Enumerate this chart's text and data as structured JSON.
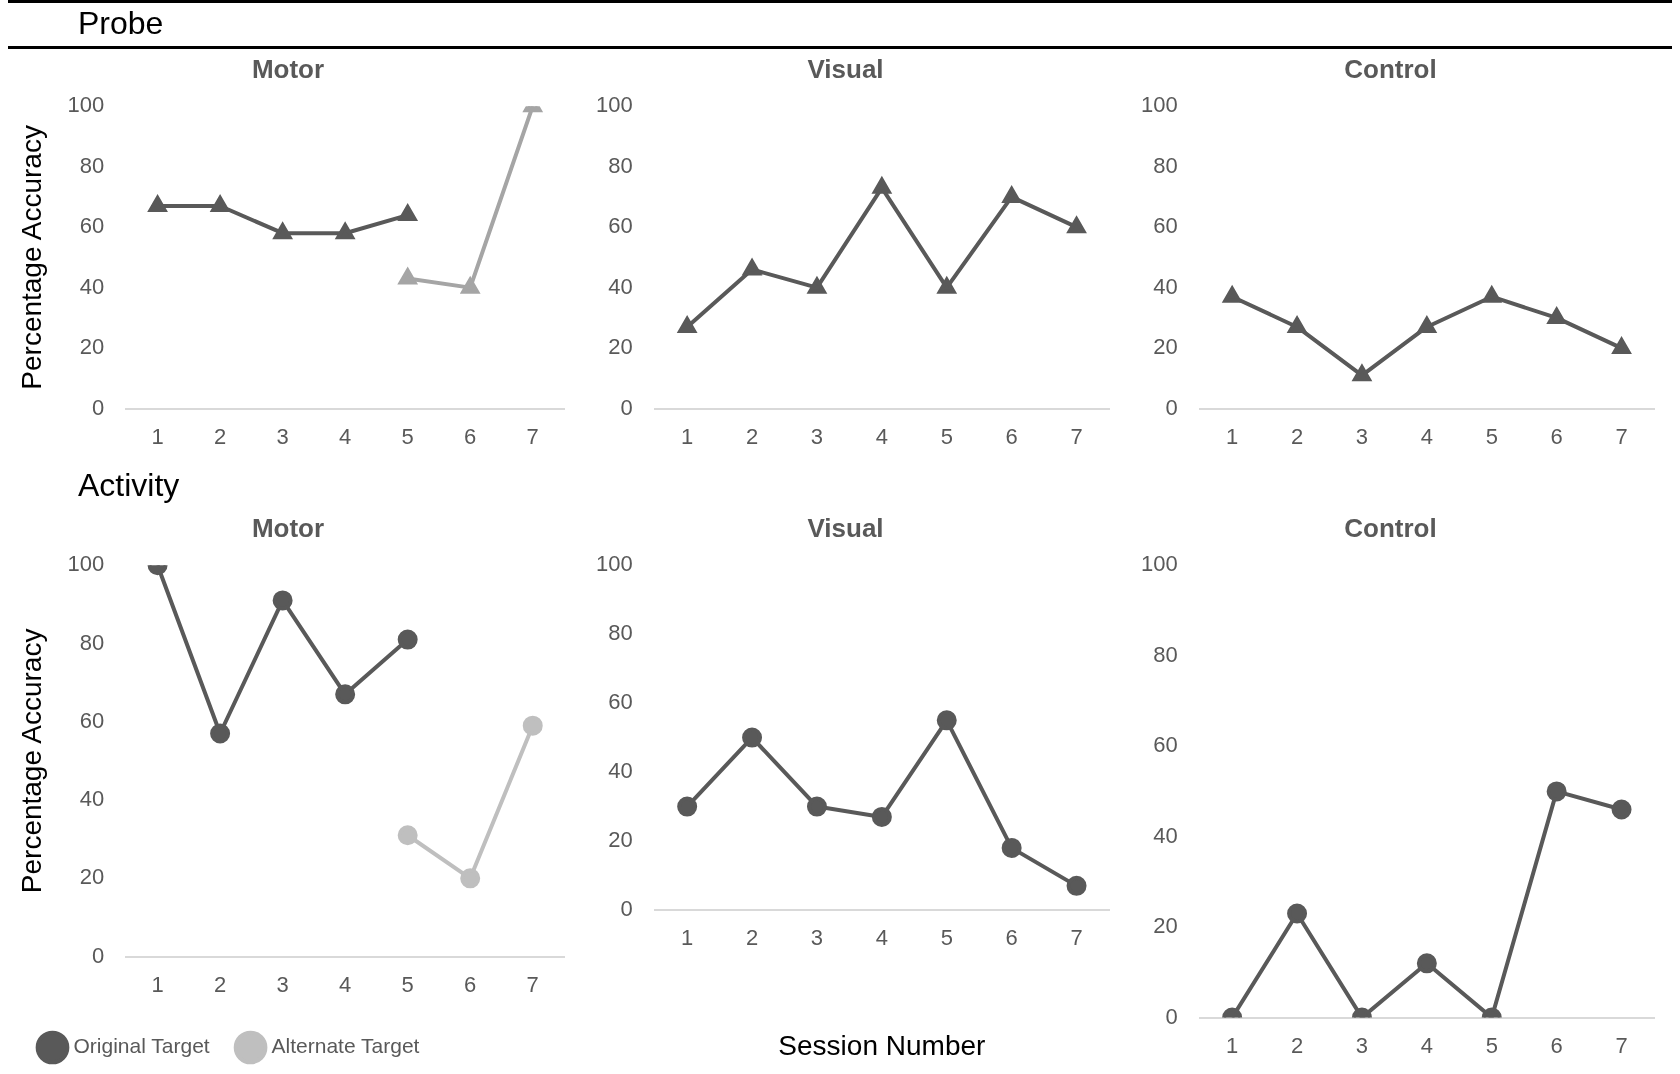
{
  "chart_data": [
    {
      "type": "line",
      "title": "Motor",
      "ylabel": "Percentage Accuracy",
      "annotations": [
        "Probe"
      ],
      "categories": [
        "1",
        "2",
        "3",
        "4",
        "5",
        "6",
        "7"
      ],
      "marker": "triangle",
      "ylim": [
        0,
        100
      ],
      "yticks": [
        0,
        20,
        40,
        60,
        80,
        100
      ],
      "grid": false,
      "series": [
        {
          "color": "#595959",
          "values": [
            67,
            67,
            58,
            58,
            64,
            null,
            null
          ]
        },
        {
          "color": "#a5a5a5",
          "values": [
            null,
            null,
            null,
            null,
            43,
            40,
            100
          ]
        }
      ]
    },
    {
      "type": "line",
      "title": "Visual",
      "categories": [
        "1",
        "2",
        "3",
        "4",
        "5",
        "6",
        "7"
      ],
      "marker": "triangle",
      "ylim": [
        0,
        100
      ],
      "yticks": [
        0,
        20,
        40,
        60,
        80,
        100
      ],
      "grid": false,
      "series": [
        {
          "color": "#595959",
          "values": [
            27,
            46,
            40,
            73,
            40,
            70,
            60
          ]
        }
      ]
    },
    {
      "type": "line",
      "title": "Control",
      "categories": [
        "1",
        "2",
        "3",
        "4",
        "5",
        "6",
        "7"
      ],
      "marker": "triangle",
      "ylim": [
        0,
        100
      ],
      "yticks": [
        0,
        20,
        40,
        60,
        80,
        100
      ],
      "grid": false,
      "series": [
        {
          "color": "#595959",
          "values": [
            37,
            27,
            11,
            27,
            37,
            30,
            20
          ]
        }
      ]
    },
    {
      "type": "line",
      "title": "Motor",
      "ylabel": "Percentage Accuracy",
      "annotations": [
        "Activity"
      ],
      "categories": [
        "1",
        "2",
        "3",
        "4",
        "5",
        "6",
        "7"
      ],
      "marker": "circle",
      "ylim": [
        0,
        100
      ],
      "yticks": [
        0,
        20,
        40,
        60,
        80,
        100
      ],
      "grid": false,
      "legend": "bottom",
      "series": [
        {
          "name": "Original Target",
          "color": "#595959",
          "values": [
            100,
            57,
            91,
            67,
            81,
            null,
            null
          ]
        },
        {
          "name": "Alternate Target",
          "color": "#bfbfbf",
          "values": [
            null,
            null,
            null,
            null,
            31,
            20,
            59
          ]
        }
      ]
    },
    {
      "type": "line",
      "title": "Visual",
      "xlabel": "Session Number",
      "categories": [
        "1",
        "2",
        "3",
        "4",
        "5",
        "6",
        "7"
      ],
      "marker": "circle",
      "ylim": [
        0,
        100
      ],
      "yticks": [
        0,
        20,
        40,
        60,
        80,
        100
      ],
      "grid": false,
      "series": [
        {
          "color": "#595959",
          "values": [
            30,
            50,
            30,
            27,
            55,
            18,
            7
          ]
        }
      ]
    },
    {
      "type": "line",
      "title": "Control",
      "categories": [
        "1",
        "2",
        "3",
        "4",
        "5",
        "6",
        "7"
      ],
      "marker": "circle",
      "ylim": [
        0,
        100
      ],
      "yticks": [
        0,
        20,
        40,
        60,
        80,
        100
      ],
      "grid": false,
      "series": [
        {
          "color": "#595959",
          "values": [
            0,
            23,
            0,
            12,
            0,
            50,
            46
          ]
        }
      ]
    }
  ]
}
